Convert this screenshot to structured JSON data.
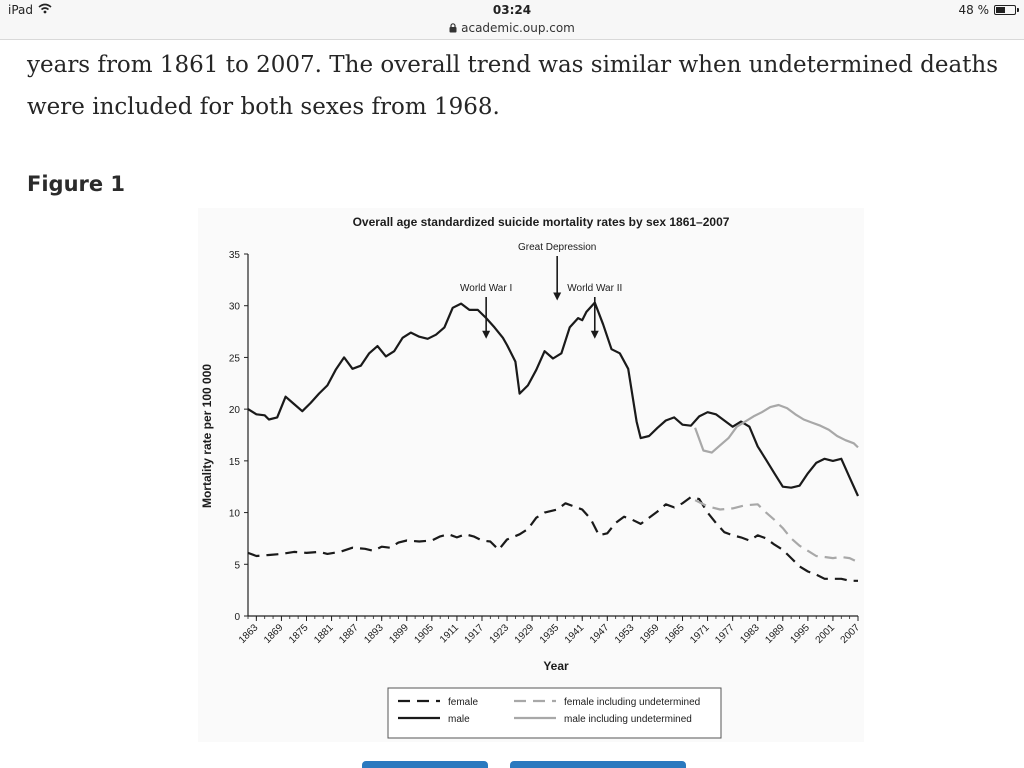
{
  "status_bar": {
    "device": "iPad",
    "time": "03:24",
    "url": "academic.oup.com",
    "battery_label": "48 %",
    "battery_level": 0.48,
    "wifi_icon": "wifi-icon",
    "lock_icon": "lock-icon",
    "battery_icon": "battery-icon"
  },
  "article": {
    "paragraph": "years from 1861 to 2007. The overall trend was similar when undetermined deaths\nwere included for both sexes from 1968.",
    "figure_heading": "Figure 1"
  },
  "buttons": {
    "color": "#2a79bf"
  },
  "chart_data": {
    "type": "line",
    "title": "Overall age standardized suicide mortality rates by sex 1861–2007",
    "xlabel": "Year",
    "ylabel": "Mortality rate per 100 000",
    "xlim": [
      1861,
      2007
    ],
    "ylim": [
      0,
      35
    ],
    "yticks": [
      0,
      5,
      10,
      15,
      20,
      25,
      30,
      35
    ],
    "xticks": [
      "1863",
      "1869",
      "1875",
      "1881",
      "1887",
      "1893",
      "1899",
      "1905",
      "1911",
      "1917",
      "1923",
      "1929",
      "1935",
      "1941",
      "1947",
      "1953",
      "1959",
      "1965",
      "1971",
      "1977",
      "1983",
      "1989",
      "1995",
      "2001",
      "2007"
    ],
    "legend_position": "bottom",
    "annotations": [
      {
        "text": "Great Depression",
        "x": 1935,
        "y": 30.5
      },
      {
        "text": "World War I",
        "x": 1918,
        "y": 26.8
      },
      {
        "text": "World War II",
        "x": 1944,
        "y": 26.8
      }
    ],
    "series": [
      {
        "name": "female",
        "style": "dashed",
        "color": "#1a1a1a",
        "points": [
          [
            1861,
            6.1
          ],
          [
            1863,
            5.8
          ],
          [
            1866,
            5.9
          ],
          [
            1869,
            6.0
          ],
          [
            1872,
            6.2
          ],
          [
            1875,
            6.1
          ],
          [
            1878,
            6.2
          ],
          [
            1880,
            6.0
          ],
          [
            1883,
            6.2
          ],
          [
            1886,
            6.6
          ],
          [
            1889,
            6.5
          ],
          [
            1891,
            6.3
          ],
          [
            1893,
            6.7
          ],
          [
            1895,
            6.6
          ],
          [
            1897,
            7.1
          ],
          [
            1899,
            7.3
          ],
          [
            1902,
            7.2
          ],
          [
            1905,
            7.3
          ],
          [
            1907,
            7.7
          ],
          [
            1909,
            7.9
          ],
          [
            1911,
            7.6
          ],
          [
            1913,
            7.9
          ],
          [
            1915,
            7.7
          ],
          [
            1917,
            7.3
          ],
          [
            1919,
            7.2
          ],
          [
            1921,
            6.4
          ],
          [
            1923,
            7.4
          ],
          [
            1926,
            7.9
          ],
          [
            1928,
            8.4
          ],
          [
            1930,
            9.5
          ],
          [
            1932,
            10.0
          ],
          [
            1935,
            10.3
          ],
          [
            1937,
            10.9
          ],
          [
            1939,
            10.6
          ],
          [
            1941,
            10.3
          ],
          [
            1943,
            9.4
          ],
          [
            1945,
            7.8
          ],
          [
            1947,
            8.0
          ],
          [
            1949,
            9.0
          ],
          [
            1951,
            9.6
          ],
          [
            1953,
            9.3
          ],
          [
            1955,
            8.9
          ],
          [
            1957,
            9.5
          ],
          [
            1959,
            10.1
          ],
          [
            1961,
            10.8
          ],
          [
            1963,
            10.5
          ],
          [
            1965,
            10.9
          ],
          [
            1967,
            11.5
          ],
          [
            1969,
            11.3
          ],
          [
            1971,
            10.0
          ],
          [
            1973,
            9.0
          ],
          [
            1975,
            8.1
          ],
          [
            1977,
            7.8
          ],
          [
            1979,
            7.6
          ],
          [
            1981,
            7.3
          ],
          [
            1983,
            7.8
          ],
          [
            1985,
            7.5
          ],
          [
            1987,
            6.9
          ],
          [
            1989,
            6.4
          ],
          [
            1991,
            5.6
          ],
          [
            1993,
            4.8
          ],
          [
            1995,
            4.3
          ],
          [
            1997,
            4.0
          ],
          [
            1999,
            3.6
          ],
          [
            2001,
            3.6
          ],
          [
            2003,
            3.6
          ],
          [
            2005,
            3.4
          ],
          [
            2007,
            3.4
          ]
        ]
      },
      {
        "name": "female including undetermined",
        "style": "dashed",
        "color": "#a8a8a8",
        "points": [
          [
            1968,
            11.2
          ],
          [
            1971,
            10.6
          ],
          [
            1974,
            10.3
          ],
          [
            1977,
            10.4
          ],
          [
            1980,
            10.7
          ],
          [
            1983,
            10.8
          ],
          [
            1985,
            10.0
          ],
          [
            1987,
            9.3
          ],
          [
            1989,
            8.5
          ],
          [
            1991,
            7.5
          ],
          [
            1993,
            6.8
          ],
          [
            1995,
            6.3
          ],
          [
            1997,
            5.8
          ],
          [
            1999,
            5.7
          ],
          [
            2001,
            5.6
          ],
          [
            2003,
            5.7
          ],
          [
            2005,
            5.6
          ],
          [
            2007,
            5.2
          ]
        ]
      },
      {
        "name": "male",
        "style": "solid",
        "color": "#1a1a1a",
        "points": [
          [
            1861,
            20.0
          ],
          [
            1863,
            19.5
          ],
          [
            1865,
            19.4
          ],
          [
            1866,
            19.0
          ],
          [
            1868,
            19.2
          ],
          [
            1870,
            21.2
          ],
          [
            1872,
            20.5
          ],
          [
            1874,
            19.8
          ],
          [
            1876,
            20.6
          ],
          [
            1878,
            21.5
          ],
          [
            1880,
            22.3
          ],
          [
            1882,
            23.8
          ],
          [
            1884,
            25.0
          ],
          [
            1886,
            23.9
          ],
          [
            1888,
            24.2
          ],
          [
            1890,
            25.4
          ],
          [
            1892,
            26.1
          ],
          [
            1894,
            25.1
          ],
          [
            1896,
            25.6
          ],
          [
            1898,
            26.9
          ],
          [
            1900,
            27.4
          ],
          [
            1902,
            27.0
          ],
          [
            1904,
            26.8
          ],
          [
            1906,
            27.2
          ],
          [
            1908,
            27.9
          ],
          [
            1910,
            29.8
          ],
          [
            1912,
            30.2
          ],
          [
            1914,
            29.6
          ],
          [
            1916,
            29.6
          ],
          [
            1918,
            28.8
          ],
          [
            1920,
            27.9
          ],
          [
            1922,
            26.9
          ],
          [
            1923,
            26.2
          ],
          [
            1925,
            24.6
          ],
          [
            1926,
            21.5
          ],
          [
            1928,
            22.3
          ],
          [
            1930,
            23.8
          ],
          [
            1932,
            25.6
          ],
          [
            1934,
            24.9
          ],
          [
            1936,
            25.4
          ],
          [
            1938,
            27.9
          ],
          [
            1940,
            28.8
          ],
          [
            1941,
            28.6
          ],
          [
            1942,
            29.4
          ],
          [
            1944,
            30.3
          ],
          [
            1946,
            28.2
          ],
          [
            1948,
            25.8
          ],
          [
            1950,
            25.4
          ],
          [
            1952,
            23.9
          ],
          [
            1954,
            18.8
          ],
          [
            1955,
            17.2
          ],
          [
            1957,
            17.4
          ],
          [
            1959,
            18.2
          ],
          [
            1961,
            18.9
          ],
          [
            1963,
            19.2
          ],
          [
            1965,
            18.5
          ],
          [
            1967,
            18.4
          ],
          [
            1969,
            19.3
          ],
          [
            1971,
            19.7
          ],
          [
            1973,
            19.5
          ],
          [
            1975,
            18.9
          ],
          [
            1977,
            18.3
          ],
          [
            1979,
            18.8
          ],
          [
            1981,
            18.3
          ],
          [
            1983,
            16.4
          ],
          [
            1985,
            15.1
          ],
          [
            1987,
            13.8
          ],
          [
            1989,
            12.5
          ],
          [
            1991,
            12.4
          ],
          [
            1993,
            12.6
          ],
          [
            1995,
            13.8
          ],
          [
            1997,
            14.8
          ],
          [
            1999,
            15.2
          ],
          [
            2001,
            15.0
          ],
          [
            2003,
            15.2
          ],
          [
            2005,
            13.4
          ],
          [
            2007,
            11.6
          ]
        ]
      },
      {
        "name": "male including undetermined",
        "style": "solid",
        "color": "#a8a8a8",
        "points": [
          [
            1968,
            18.2
          ],
          [
            1970,
            16.0
          ],
          [
            1972,
            15.8
          ],
          [
            1974,
            16.5
          ],
          [
            1976,
            17.2
          ],
          [
            1978,
            18.3
          ],
          [
            1980,
            18.8
          ],
          [
            1982,
            19.3
          ],
          [
            1984,
            19.7
          ],
          [
            1986,
            20.2
          ],
          [
            1988,
            20.4
          ],
          [
            1990,
            20.1
          ],
          [
            1992,
            19.5
          ],
          [
            1994,
            19.0
          ],
          [
            1996,
            18.7
          ],
          [
            1998,
            18.4
          ],
          [
            2000,
            18.0
          ],
          [
            2002,
            17.4
          ],
          [
            2004,
            17.0
          ],
          [
            2006,
            16.7
          ],
          [
            2007,
            16.3
          ]
        ]
      }
    ]
  }
}
